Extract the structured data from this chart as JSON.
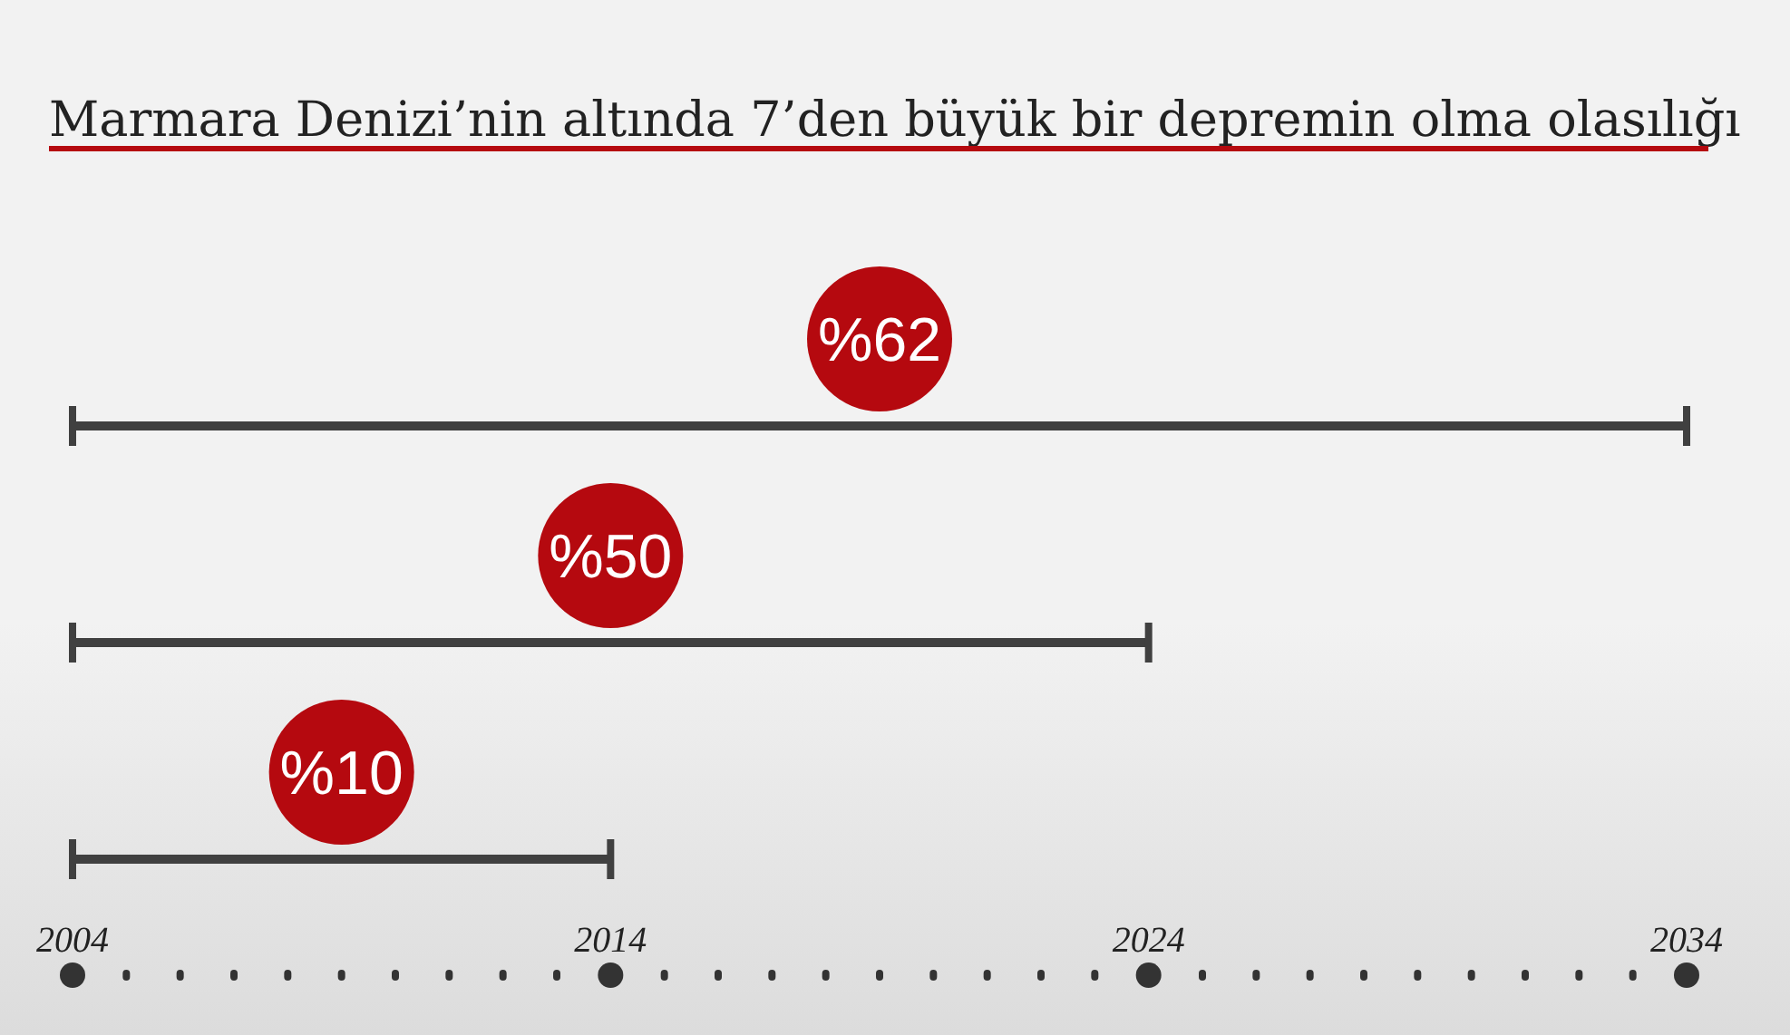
{
  "chart_data": {
    "type": "bar",
    "orientation": "horizontal",
    "title": "Marmara Denizi’nin altında 7’den büyük bir depremin olma olasılığı",
    "categories": [
      null,
      null,
      null
    ],
    "base": [
      2004,
      2004,
      2004
    ],
    "values": [
      30,
      20,
      10
    ],
    "annotations": [
      "%62",
      "%50",
      "%10"
    ],
    "color": "#404040",
    "xlim": [
      2004,
      2034
    ],
    "xticks": [
      2004,
      {
        "value": 2005,
        "label": null
      },
      {
        "value": 2006,
        "label": null
      },
      {
        "value": 2007,
        "label": null
      },
      {
        "value": 2008,
        "label": null
      },
      {
        "value": 2009,
        "label": null
      },
      {
        "value": 2010,
        "label": null
      },
      {
        "value": 2011,
        "label": null
      },
      {
        "value": 2012,
        "label": null
      },
      {
        "value": 2013,
        "label": null
      },
      2014,
      {
        "value": 2015,
        "label": null
      },
      {
        "value": 2016,
        "label": null
      },
      {
        "value": 2017,
        "label": null
      },
      {
        "value": 2018,
        "label": null
      },
      {
        "value": 2019,
        "label": null
      },
      {
        "value": 2020,
        "label": null
      },
      {
        "value": 2021,
        "label": null
      },
      {
        "value": 2022,
        "label": null
      },
      {
        "value": 2023,
        "label": null
      },
      2024,
      {
        "value": 2025,
        "label": null
      },
      {
        "value": 2026,
        "label": null
      },
      {
        "value": 2027,
        "label": null
      },
      {
        "value": 2028,
        "label": null
      },
      {
        "value": 2029,
        "label": null
      },
      {
        "value": 2030,
        "label": null
      },
      {
        "value": 2031,
        "label": null
      },
      {
        "value": 2032,
        "label": null
      },
      {
        "value": 2033,
        "label": null
      },
      2034
    ],
    "grid": false,
    "legend": false
  }
}
